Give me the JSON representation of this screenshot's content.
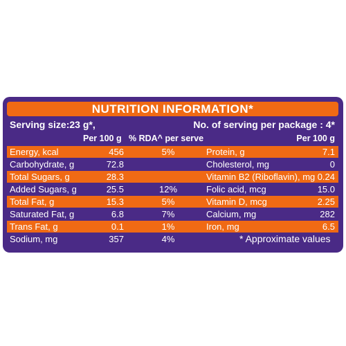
{
  "title": "NUTRITION INFORMATION*",
  "serving_size": "Serving size:23 g*,",
  "servings_per_package": "No. of serving per package : 4*",
  "col_headers": {
    "left_per100": "Per 100 g",
    "rda": "% RDA^ per serve",
    "right_per100": "Per 100 g"
  },
  "rows": [
    {
      "name": "Energy, kcal",
      "value": "456",
      "rda": "5%",
      "name2": "Protein, g",
      "value2": "7.1"
    },
    {
      "name": "Carbohydrate, g",
      "value": "72.8",
      "rda": "",
      "name2": "Cholesterol, mg",
      "value2": "0"
    },
    {
      "name": "Total Sugars, g",
      "value": "28.3",
      "rda": "",
      "name2": "Vitamin B2 (Riboflavin), mg",
      "value2": "0.24"
    },
    {
      "name": "Added Sugars, g",
      "value": "25.5",
      "rda": "12%",
      "name2": "Folic acid, mcg",
      "value2": "15.0"
    },
    {
      "name": "Total Fat, g",
      "value": "15.3",
      "rda": "5%",
      "name2": "Vitamin D, mcg",
      "value2": "2.25"
    },
    {
      "name": "Saturated Fat, g",
      "value": "6.8",
      "rda": "7%",
      "name2": "Calcium, mg",
      "value2": "282"
    },
    {
      "name": "Trans Fat, g",
      "value": "0.1",
      "rda": "1%",
      "name2": "Iron, mg",
      "value2": "6.5"
    },
    {
      "name": "Sodium, mg",
      "value": "357",
      "rda": "4%",
      "name2": "* Approximate values",
      "value2": ""
    }
  ],
  "colors": {
    "panel": "#4a2a86",
    "stripe": "#f06a14",
    "text": "#ffffff"
  }
}
